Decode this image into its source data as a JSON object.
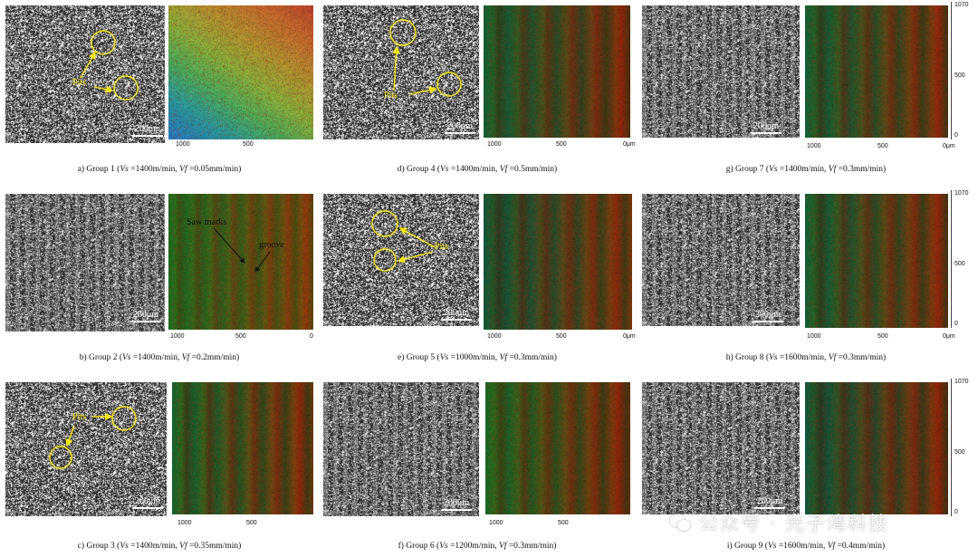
{
  "scale_bar": "200μm",
  "pits": "Pits",
  "saw_marks": "Saw marks",
  "groove": "groove",
  "axis_ticks_x": [
    "1000",
    "500",
    "0μm"
  ],
  "axis_ticks_y": [
    "1070",
    "500",
    "0"
  ],
  "panels": [
    {
      "caption_pre": "a) Group 1 (",
      "vs": "Vs",
      "vs_val": " =1400m/min, ",
      "vf": "Vf",
      "vf_val": " =0.05mm/min)"
    },
    {
      "caption_pre": "b) Group 2 (",
      "vs": "Vs",
      "vs_val": " =1400m/min, ",
      "vf": "Vf",
      "vf_val": " =0.2mm/min)"
    },
    {
      "caption_pre": "c) Group 3 (",
      "vs": "Vs",
      "vs_val": " =1400m/min, ",
      "vf": "Vf",
      "vf_val": " =0.35mm/min)"
    },
    {
      "caption_pre": "d) Group 4 (",
      "vs": "Vs",
      "vs_val": " =1400m/min, ",
      "vf": "Vf",
      "vf_val": " =0.5mm/min)"
    },
    {
      "caption_pre": "e) Group 5 (",
      "vs": "Vs",
      "vs_val": " =1000m/min, ",
      "vf": "Vf",
      "vf_val": " =0.3mm/min)"
    },
    {
      "caption_pre": "f) Group 6 (",
      "vs": "Vs",
      "vs_val": " =1200m/min, ",
      "vf": "Vf",
      "vf_val": " =0.3mm/min)"
    },
    {
      "caption_pre": "g) Group 7 (",
      "vs": "Vs",
      "vs_val": " =1400m/min, ",
      "vf": "Vf",
      "vf_val": " =0.3mm/min)"
    },
    {
      "caption_pre": "h) Group 8 (",
      "vs": "Vs",
      "vs_val": " =1600m/min, ",
      "vf": "Vf",
      "vf_val": " =0.3mm/min)"
    },
    {
      "caption_pre": "i) Group 9 (",
      "vs": "Vs",
      "vs_val": " =1600m/min, ",
      "vf": "Vf",
      "vf_val": " =0.4mm/min)"
    }
  ],
  "watermark": "公众号 · 光子湾科技",
  "colors": {
    "annotation": "#f2e600",
    "arrow_black": "#111111"
  }
}
